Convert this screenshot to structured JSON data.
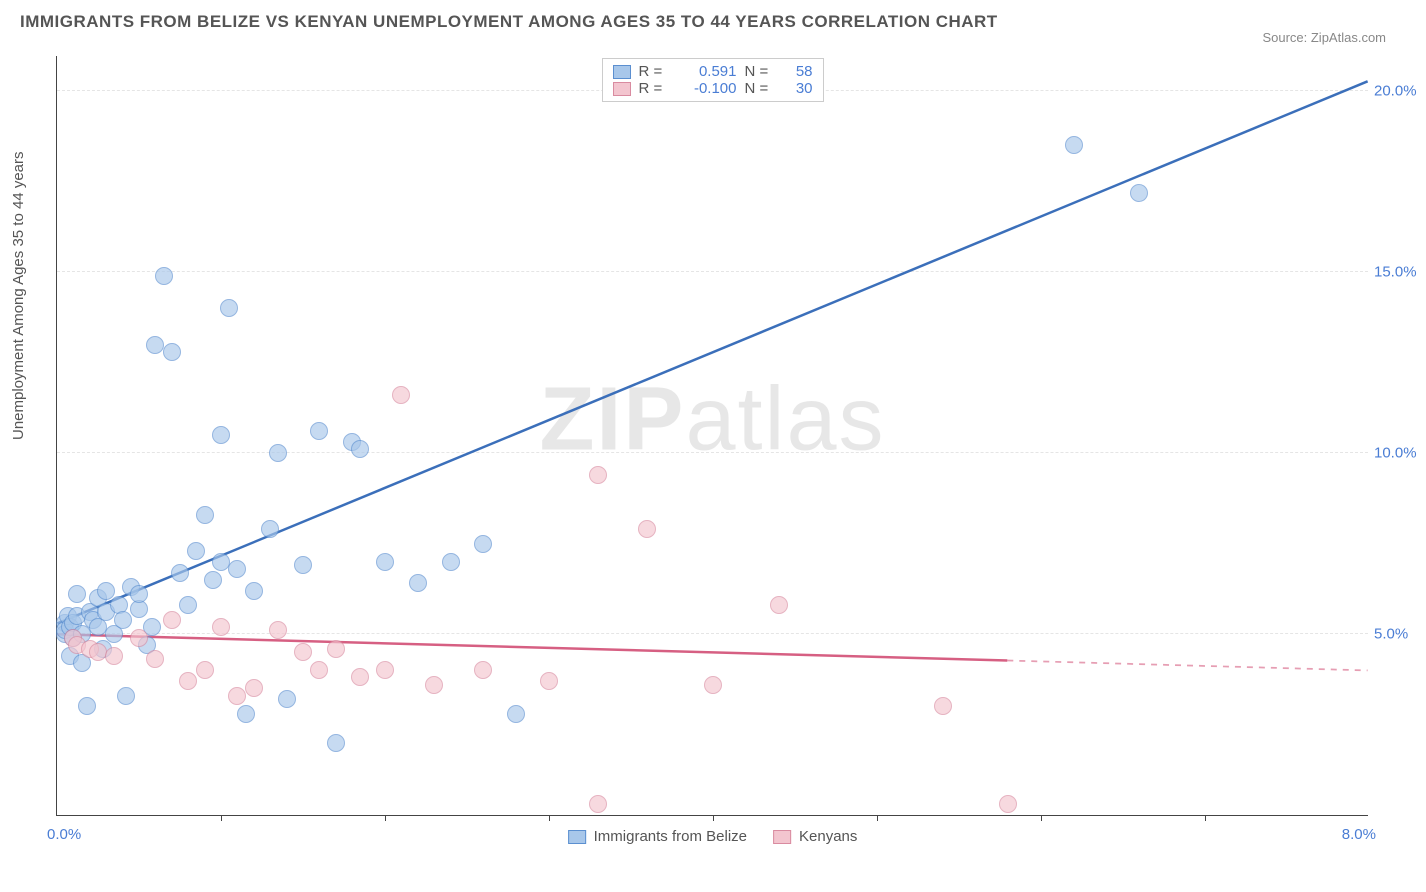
{
  "title": "IMMIGRANTS FROM BELIZE VS KENYAN UNEMPLOYMENT AMONG AGES 35 TO 44 YEARS CORRELATION CHART",
  "source": "Source: ZipAtlas.com",
  "ylabel": "Unemployment Among Ages 35 to 44 years",
  "watermark_bold": "ZIP",
  "watermark_rest": "atlas",
  "chart": {
    "type": "scatter",
    "xlim": [
      0,
      8
    ],
    "ylim": [
      0,
      21
    ],
    "x_tick_step": 1,
    "x_label_min": "0.0%",
    "x_label_max": "8.0%",
    "y_ticks": [
      5,
      10,
      15,
      20
    ],
    "y_tick_labels": [
      "5.0%",
      "10.0%",
      "15.0%",
      "20.0%"
    ],
    "background_color": "#ffffff",
    "grid_color": "#e5e5e5",
    "axis_color": "#444444",
    "marker_size": 18,
    "series": [
      {
        "name": "Immigrants from Belize",
        "color_fill": "#a8c7ea",
        "color_stroke": "#5b8fd0",
        "r": 0.591,
        "n": 58,
        "r_label": "0.591",
        "n_label": "58",
        "trend": {
          "x1": 0.0,
          "y1": 5.3,
          "x2": 8.0,
          "y2": 20.3,
          "color": "#3b6fba",
          "width": 2.5,
          "solid_until_x": 8.0
        },
        "points": [
          [
            0.05,
            5.3
          ],
          [
            0.05,
            5.0
          ],
          [
            0.05,
            5.1
          ],
          [
            0.07,
            5.5
          ],
          [
            0.08,
            4.4
          ],
          [
            0.08,
            5.2
          ],
          [
            0.1,
            5.3
          ],
          [
            0.1,
            4.9
          ],
          [
            0.12,
            6.1
          ],
          [
            0.12,
            5.5
          ],
          [
            0.15,
            5.0
          ],
          [
            0.15,
            4.2
          ],
          [
            0.18,
            3.0
          ],
          [
            0.2,
            5.6
          ],
          [
            0.22,
            5.4
          ],
          [
            0.25,
            6.0
          ],
          [
            0.25,
            5.2
          ],
          [
            0.28,
            4.6
          ],
          [
            0.3,
            5.6
          ],
          [
            0.3,
            6.2
          ],
          [
            0.35,
            5.0
          ],
          [
            0.38,
            5.8
          ],
          [
            0.4,
            5.4
          ],
          [
            0.42,
            3.3
          ],
          [
            0.45,
            6.3
          ],
          [
            0.5,
            5.7
          ],
          [
            0.5,
            6.1
          ],
          [
            0.55,
            4.7
          ],
          [
            0.58,
            5.2
          ],
          [
            0.6,
            13.0
          ],
          [
            0.65,
            14.9
          ],
          [
            0.7,
            12.8
          ],
          [
            0.75,
            6.7
          ],
          [
            0.8,
            5.8
          ],
          [
            0.85,
            7.3
          ],
          [
            0.9,
            8.3
          ],
          [
            0.95,
            6.5
          ],
          [
            1.0,
            10.5
          ],
          [
            1.0,
            7.0
          ],
          [
            1.05,
            14.0
          ],
          [
            1.1,
            6.8
          ],
          [
            1.15,
            2.8
          ],
          [
            1.2,
            6.2
          ],
          [
            1.3,
            7.9
          ],
          [
            1.35,
            10.0
          ],
          [
            1.4,
            3.2
          ],
          [
            1.5,
            6.9
          ],
          [
            1.6,
            10.6
          ],
          [
            1.7,
            2.0
          ],
          [
            1.8,
            10.3
          ],
          [
            1.85,
            10.1
          ],
          [
            2.0,
            7.0
          ],
          [
            2.2,
            6.4
          ],
          [
            2.4,
            7.0
          ],
          [
            2.6,
            7.5
          ],
          [
            2.8,
            2.8
          ],
          [
            6.6,
            17.2
          ],
          [
            6.2,
            18.5
          ]
        ]
      },
      {
        "name": "Kenyans",
        "color_fill": "#f3c5cf",
        "color_stroke": "#d98ba0",
        "r": -0.1,
        "n": 30,
        "r_label": "-0.100",
        "n_label": "30",
        "trend": {
          "x1": 0.0,
          "y1": 5.0,
          "x2": 8.0,
          "y2": 4.0,
          "color": "#d65f82",
          "width": 2.5,
          "solid_until_x": 5.8
        },
        "points": [
          [
            0.1,
            4.9
          ],
          [
            0.12,
            4.7
          ],
          [
            0.2,
            4.6
          ],
          [
            0.25,
            4.5
          ],
          [
            0.35,
            4.4
          ],
          [
            0.5,
            4.9
          ],
          [
            0.6,
            4.3
          ],
          [
            0.7,
            5.4
          ],
          [
            0.8,
            3.7
          ],
          [
            0.9,
            4.0
          ],
          [
            1.0,
            5.2
          ],
          [
            1.1,
            3.3
          ],
          [
            1.2,
            3.5
          ],
          [
            1.35,
            5.1
          ],
          [
            1.5,
            4.5
          ],
          [
            1.6,
            4.0
          ],
          [
            1.7,
            4.6
          ],
          [
            1.85,
            3.8
          ],
          [
            2.0,
            4.0
          ],
          [
            2.1,
            11.6
          ],
          [
            2.3,
            3.6
          ],
          [
            2.6,
            4.0
          ],
          [
            3.0,
            3.7
          ],
          [
            3.3,
            9.4
          ],
          [
            3.3,
            0.3
          ],
          [
            3.6,
            7.9
          ],
          [
            4.0,
            3.6
          ],
          [
            4.4,
            5.8
          ],
          [
            5.4,
            3.0
          ],
          [
            5.8,
            0.3
          ]
        ]
      }
    ]
  },
  "legend_bottom": {
    "series1": "Immigrants from Belize",
    "series2": "Kenyans"
  }
}
